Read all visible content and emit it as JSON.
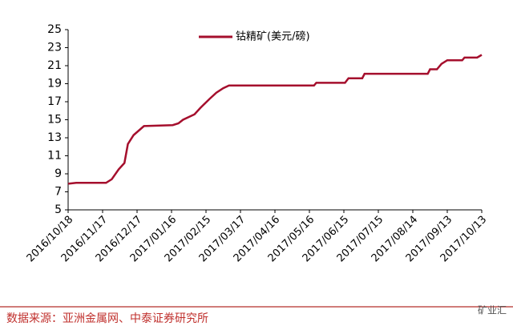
{
  "chart_data": {
    "type": "line",
    "legend_label": "钴精矿(美元/磅)",
    "source": "数据来源：亚洲金属网、中泰证券研究所",
    "watermark": "矿业汇",
    "x": [
      "2016/10/18",
      "2016/10/25",
      "2016/11/20",
      "2016/11/25",
      "2016/12/01",
      "2016/12/06",
      "2016/12/09",
      "2016/12/14",
      "2016/12/23",
      "2017/01/17",
      "2017/01/22",
      "2017/01/26",
      "2017/02/05",
      "2017/02/10",
      "2017/02/18",
      "2017/02/24",
      "2017/03/02",
      "2017/03/07",
      "2017/05/20",
      "2017/05/22",
      "2017/06/16",
      "2017/06/19",
      "2017/07/01",
      "2017/07/03",
      "2017/08/27",
      "2017/08/29",
      "2017/09/04",
      "2017/09/08",
      "2017/09/13",
      "2017/09/26",
      "2017/09/28",
      "2017/10/09",
      "2017/10/13"
    ],
    "series": [
      {
        "name": "钴精矿(美元/磅)",
        "color": "#a50f2d",
        "values": [
          7.9,
          8.0,
          8.0,
          8.4,
          9.5,
          10.2,
          12.3,
          13.3,
          14.3,
          14.4,
          14.6,
          15.0,
          15.6,
          16.3,
          17.3,
          18.0,
          18.5,
          18.8,
          18.8,
          19.1,
          19.1,
          19.6,
          19.6,
          20.1,
          20.1,
          20.6,
          20.6,
          21.2,
          21.6,
          21.6,
          21.9,
          21.9,
          22.2
        ]
      }
    ],
    "xlim": [
      "2016/10/18",
      "2017/10/13"
    ],
    "xticks": [
      "2016/10/18",
      "2016/11/17",
      "2016/12/17",
      "2017/01/16",
      "2017/02/15",
      "2017/03/17",
      "2017/04/16",
      "2017/05/16",
      "2017/06/15",
      "2017/07/15",
      "2017/08/14",
      "2017/09/13",
      "2017/10/13"
    ],
    "ylim": [
      5,
      25
    ],
    "yticks": [
      5,
      7,
      9,
      11,
      13,
      15,
      17,
      19,
      21,
      23,
      25
    ],
    "grid": false
  }
}
